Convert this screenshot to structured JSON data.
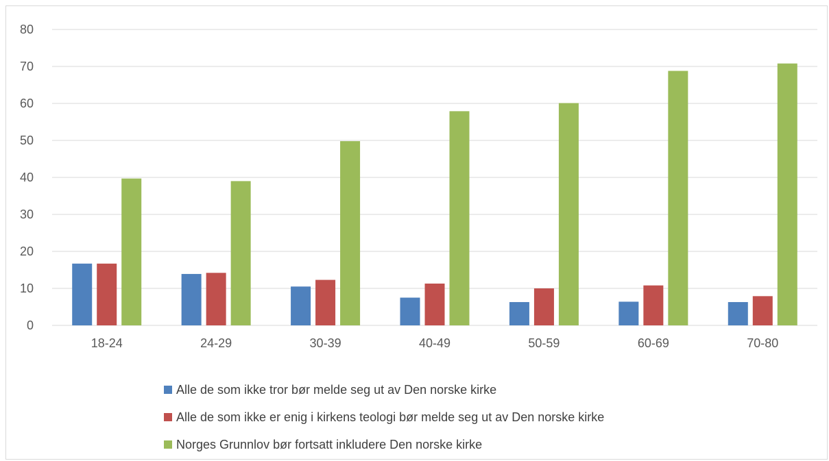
{
  "chart_data": {
    "type": "bar",
    "title": "",
    "xlabel": "",
    "ylabel": "",
    "ylim": [
      0,
      80
    ],
    "yticks": [
      "0",
      "10",
      "20",
      "30",
      "40",
      "50",
      "60",
      "70",
      "80"
    ],
    "grid": true,
    "legend_position": "bottom",
    "categories": [
      "18-24",
      "24-29",
      "30-39",
      "40-49",
      "50-59",
      "60-69",
      "70-80"
    ],
    "series": [
      {
        "name": "Alle de som ikke tror bør melde seg ut av Den norske kirke",
        "color": "#4f81bd",
        "values": [
          16.7,
          13.9,
          10.5,
          7.5,
          6.3,
          6.4,
          6.3
        ]
      },
      {
        "name": "Alle de som ikke er enig i kirkens teologi bør melde seg ut av Den norske kirke",
        "color": "#c0504d",
        "values": [
          16.7,
          14.2,
          12.3,
          11.3,
          10.0,
          10.8,
          7.9
        ]
      },
      {
        "name": "Norges Grunnlov bør fortsatt inkludere Den norske kirke",
        "color": "#9bbb59",
        "values": [
          39.7,
          39.0,
          49.8,
          57.9,
          60.1,
          68.8,
          70.8
        ]
      }
    ]
  }
}
